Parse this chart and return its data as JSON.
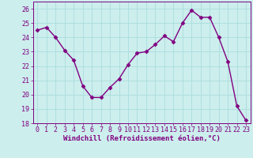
{
  "x": [
    0,
    1,
    2,
    3,
    4,
    5,
    6,
    7,
    8,
    9,
    10,
    11,
    12,
    13,
    14,
    15,
    16,
    17,
    18,
    19,
    20,
    21,
    22,
    23
  ],
  "y": [
    24.5,
    24.7,
    24.0,
    23.1,
    22.4,
    20.6,
    19.8,
    19.8,
    20.5,
    21.1,
    22.1,
    22.9,
    23.0,
    23.5,
    24.1,
    23.7,
    25.0,
    25.9,
    25.4,
    25.4,
    24.0,
    22.3,
    19.2,
    18.2
  ],
  "line_color": "#800080",
  "marker": "D",
  "markersize": 2.5,
  "linewidth": 1.0,
  "xlabel": "Windchill (Refroidissement éolien,°C)",
  "ylim": [
    18,
    26.5
  ],
  "xlim": [
    -0.5,
    23.5
  ],
  "yticks": [
    18,
    19,
    20,
    21,
    22,
    23,
    24,
    25,
    26
  ],
  "xticks": [
    0,
    1,
    2,
    3,
    4,
    5,
    6,
    7,
    8,
    9,
    10,
    11,
    12,
    13,
    14,
    15,
    16,
    17,
    18,
    19,
    20,
    21,
    22,
    23
  ],
  "bg_color": "#cceeed",
  "grid_color": "#aadddd",
  "label_fontsize": 6.5,
  "tick_fontsize": 6.0
}
